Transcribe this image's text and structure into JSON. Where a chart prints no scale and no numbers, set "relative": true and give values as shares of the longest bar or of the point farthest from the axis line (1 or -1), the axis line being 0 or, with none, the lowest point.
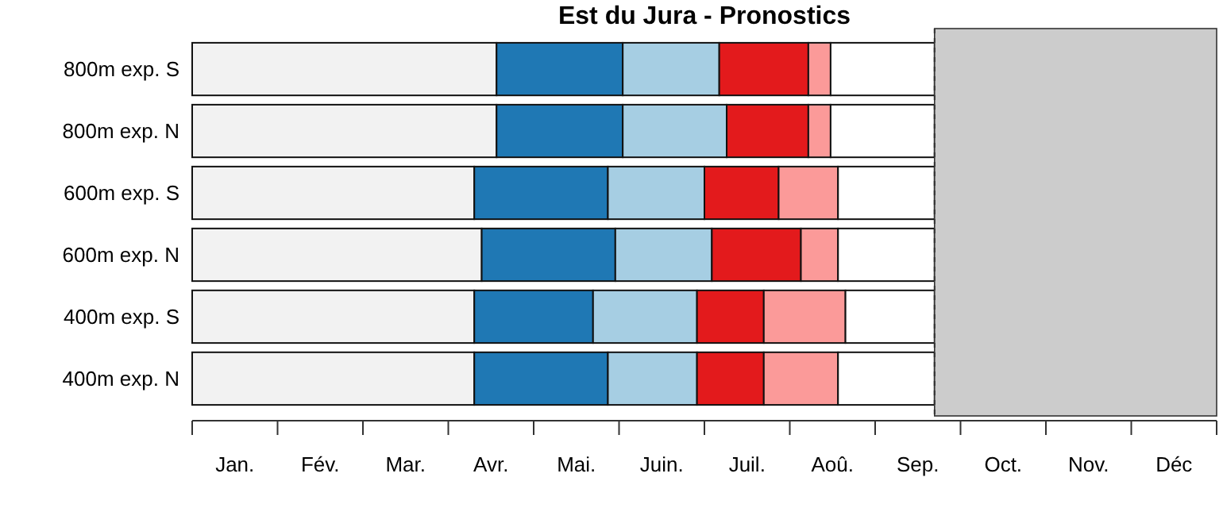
{
  "chart_data": {
    "type": "bar",
    "orientation": "horizontal",
    "stacked": true,
    "relative": true,
    "title": "Est du Jura - Pronostics",
    "categories": [
      "800m exp. S",
      "800m exp. N",
      "600m exp. S",
      "600m exp. N",
      "400m exp. S",
      "400m exp. N"
    ],
    "series": [
      {
        "color": "#f2f2f2",
        "values": [
          0.41,
          0.41,
          0.38,
          0.39,
          0.38,
          0.38
        ]
      },
      {
        "color": "#1f78b4",
        "values": [
          0.17,
          0.17,
          0.18,
          0.18,
          0.16,
          0.18
        ]
      },
      {
        "color": "#a6cee3",
        "values": [
          0.13,
          0.14,
          0.13,
          0.13,
          0.14,
          0.12
        ]
      },
      {
        "color": "#e31a1c",
        "values": [
          0.12,
          0.11,
          0.1,
          0.12,
          0.09,
          0.09
        ]
      },
      {
        "color": "#fb9a99",
        "values": [
          0.03,
          0.03,
          0.08,
          0.05,
          0.11,
          0.1
        ]
      },
      {
        "color": "#ffffff",
        "values": [
          0.14,
          0.14,
          0.13,
          0.13,
          0.12,
          0.13
        ]
      }
    ],
    "annotations": [
      "Jan.",
      "Fév.",
      "Mar.",
      "Avr.",
      "Mai.",
      "Juin.",
      "Juil.",
      "Aoû.",
      "Sep.",
      "Oct.",
      "Nov.",
      "Déc"
    ],
    "bands": [
      {
        "axis": "x",
        "from": 1,
        "to": 1.38,
        "color": "#cccccc"
      }
    ],
    "ref_lines": [
      {
        "axis": "x",
        "value": 1,
        "line_style": "dashed"
      }
    ]
  }
}
